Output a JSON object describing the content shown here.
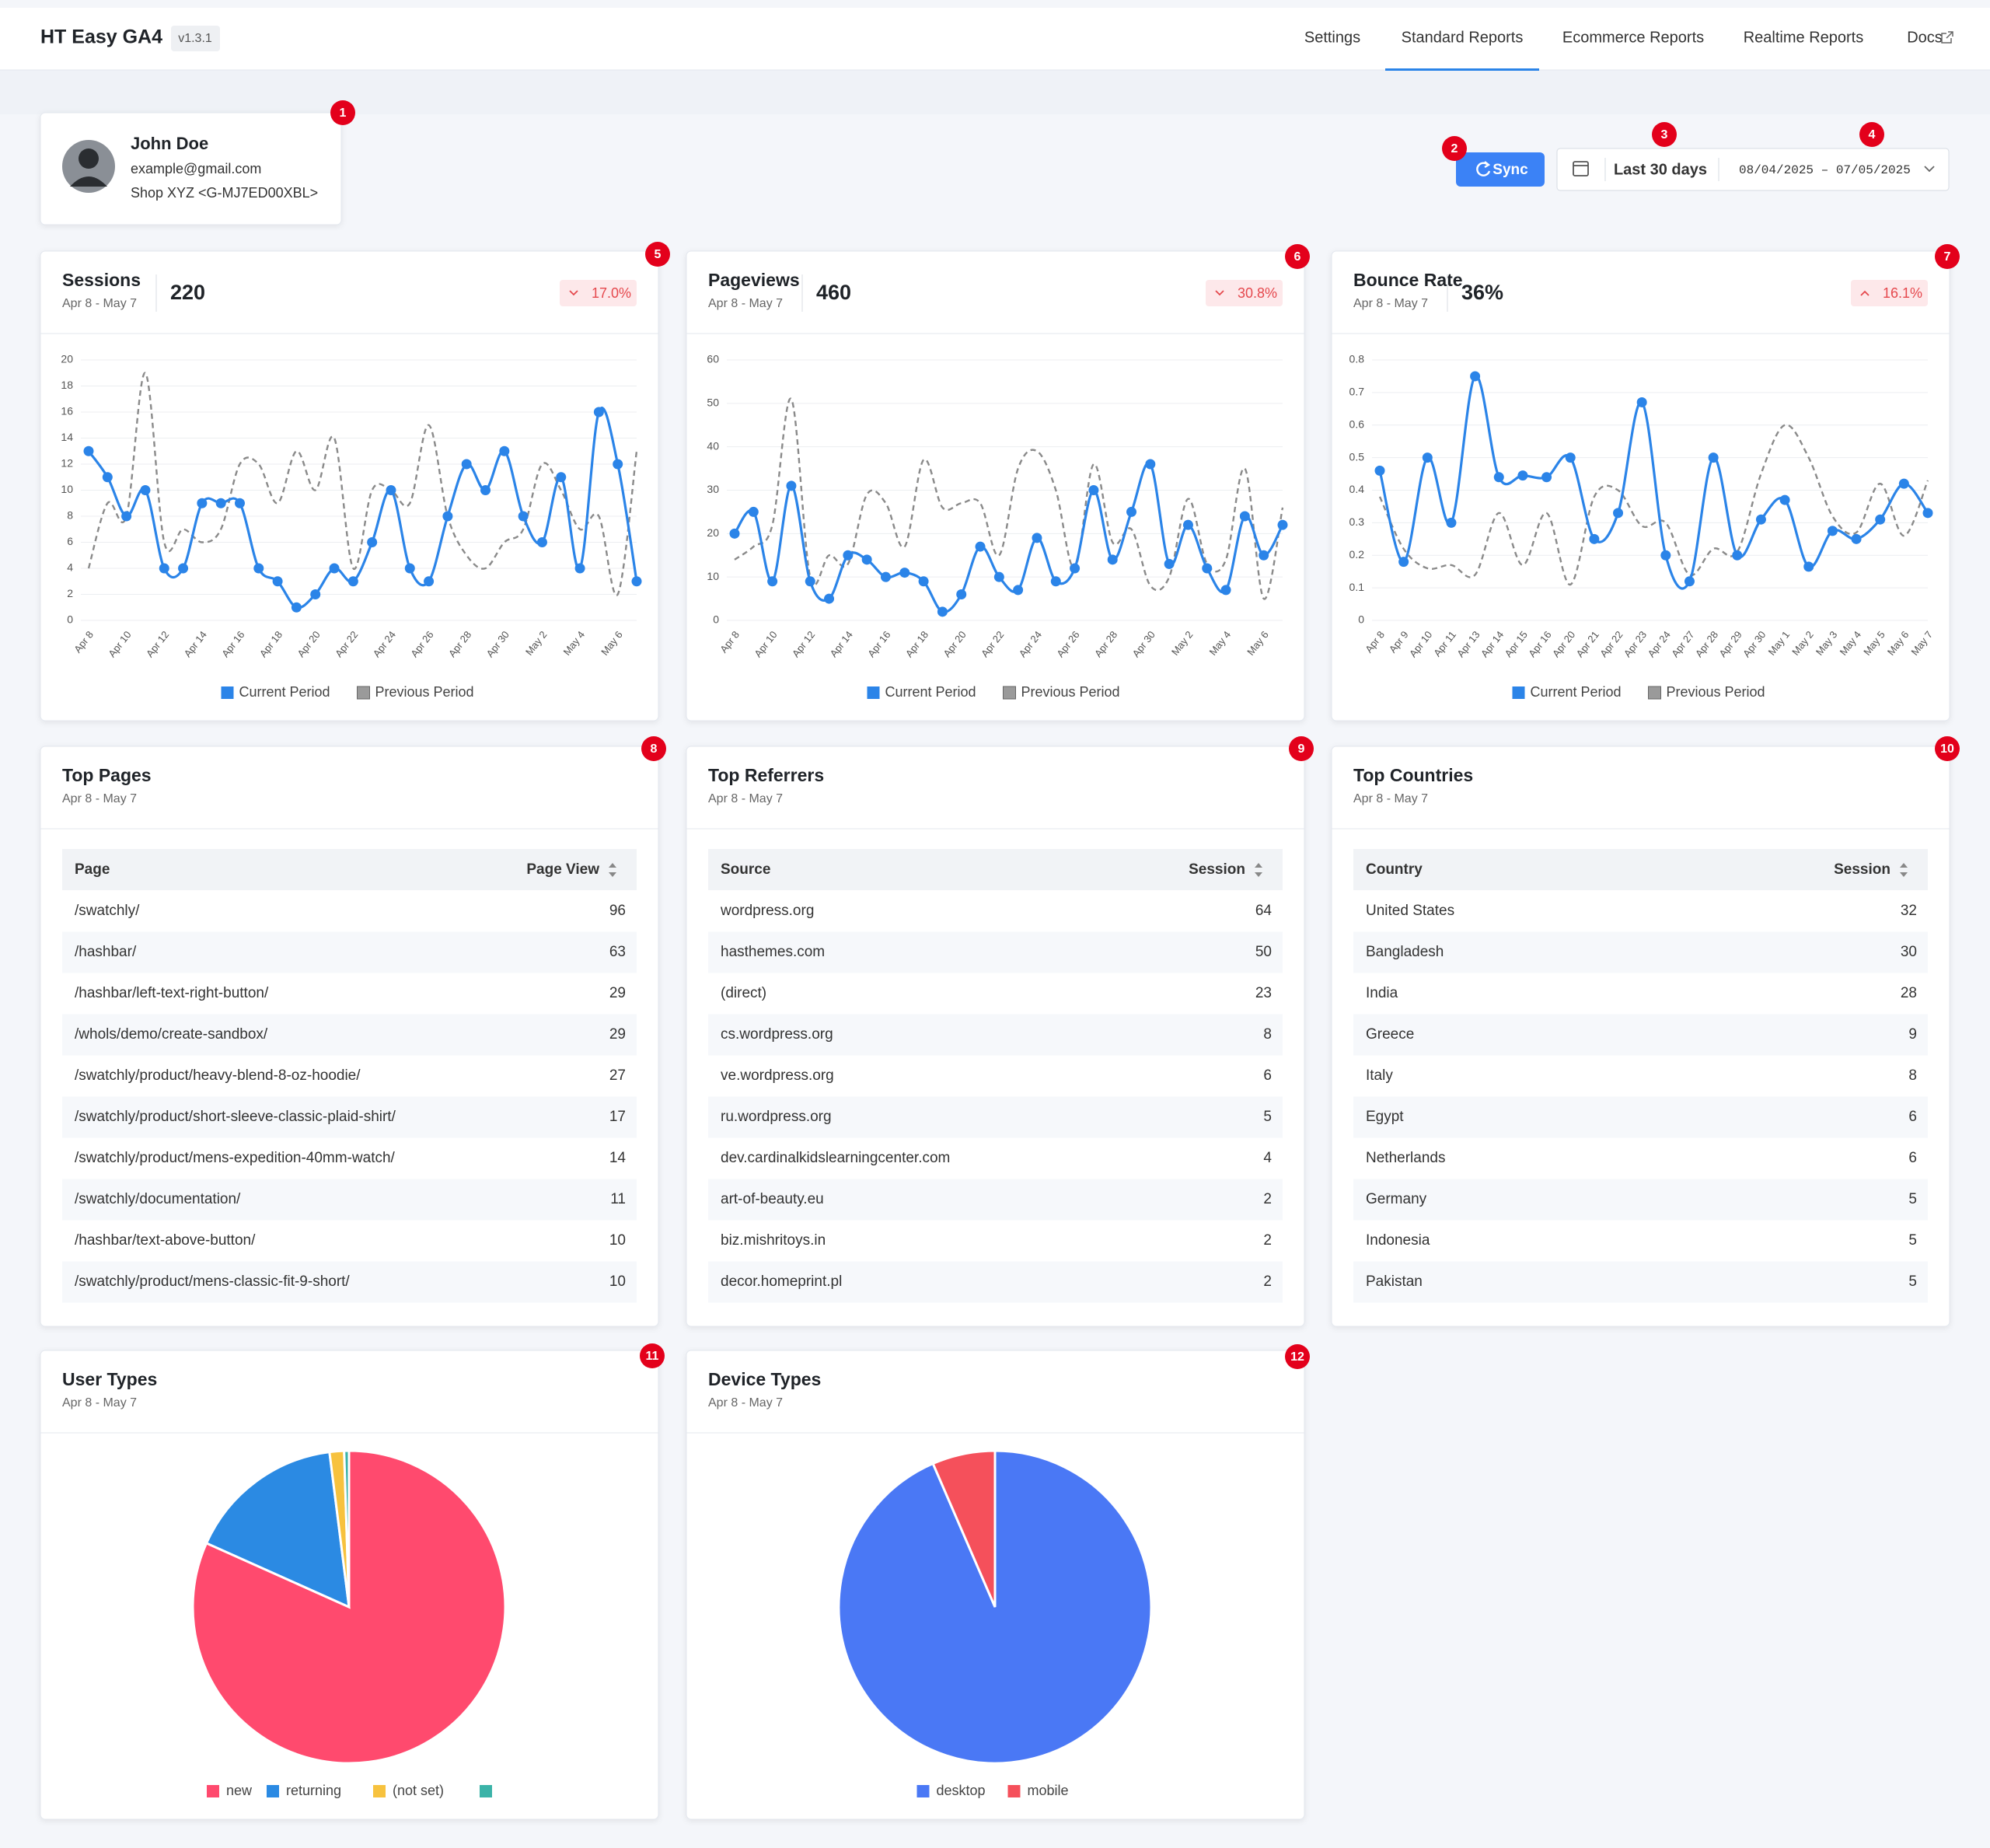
{
  "header": {
    "title": "HT Easy GA4",
    "version": "v1.3.1",
    "nav": [
      "Settings",
      "Standard Reports",
      "Ecommerce Reports",
      "Realtime Reports",
      "Docs"
    ],
    "active_nav": 1
  },
  "profile": {
    "name": "John Doe",
    "email": "example@gmail.com",
    "property": "Shop XYZ <G-MJ7ED00XBL>"
  },
  "controls": {
    "sync": "Sync",
    "range": "Last 30 days",
    "dates": "08/04/2025 – 07/05/2025"
  },
  "badges": [
    1,
    2,
    3,
    4,
    5,
    6,
    7,
    8,
    9,
    10,
    11,
    12
  ],
  "chart_data": [
    {
      "type": "line",
      "title": "Sessions",
      "subtitle": "Apr 8 - May 7",
      "total": "220",
      "change": "17.0%",
      "trend": "down",
      "categories": [
        "Apr 8",
        null,
        "Apr 10",
        null,
        "Apr 12",
        null,
        "Apr 14",
        null,
        "Apr 16",
        null,
        "Apr 18",
        null,
        "Apr 20",
        null,
        "Apr 22",
        null,
        "Apr 24",
        null,
        "Apr 26",
        null,
        "Apr 28",
        null,
        "Apr 30",
        null,
        "May 2",
        null,
        "May 4",
        null,
        "May 6",
        null
      ],
      "series": [
        {
          "name": "Current Period",
          "color": "#2b84e8",
          "values": [
            13,
            11,
            8,
            10,
            4,
            4,
            9,
            9,
            9,
            4,
            3,
            1,
            2,
            4,
            3,
            6,
            10,
            4,
            3,
            8,
            12,
            10,
            13,
            8,
            6,
            11,
            4,
            16,
            12,
            3
          ]
        },
        {
          "name": "Previous Period",
          "color": "#8a8a8a",
          "dashed": true,
          "values": [
            4,
            9,
            8,
            19,
            6,
            7,
            6,
            7,
            12,
            12,
            9,
            13,
            10,
            14,
            4,
            10,
            10,
            9,
            15,
            8,
            5,
            4,
            6,
            7,
            12,
            10,
            7,
            8,
            2,
            13
          ]
        }
      ],
      "ylim": [
        0,
        20
      ],
      "yticks": [
        0,
        2,
        4,
        6,
        8,
        10,
        12,
        14,
        16,
        18,
        20
      ],
      "grid": true
    },
    {
      "type": "line",
      "title": "Pageviews",
      "subtitle": "Apr 8 - May 7",
      "total": "460",
      "change": "30.8%",
      "trend": "down",
      "categories": [
        "Apr 8",
        null,
        "Apr 10",
        null,
        "Apr 12",
        null,
        "Apr 14",
        null,
        "Apr 16",
        null,
        "Apr 18",
        null,
        "Apr 20",
        null,
        "Apr 22",
        null,
        "Apr 24",
        null,
        "Apr 26",
        null,
        "Apr 28",
        null,
        "Apr 30",
        null,
        "May 2",
        null,
        "May 4",
        null,
        "May 6",
        null
      ],
      "series": [
        {
          "name": "Current Period",
          "color": "#2b84e8",
          "values": [
            20,
            25,
            9,
            31,
            9,
            5,
            15,
            14,
            10,
            11,
            9,
            2,
            6,
            17,
            10,
            7,
            19,
            9,
            12,
            30,
            14,
            25,
            36,
            13,
            22,
            12,
            7,
            24,
            15,
            22
          ]
        },
        {
          "name": "Previous Period",
          "color": "#8a8a8a",
          "dashed": true,
          "values": [
            14,
            17,
            22,
            51,
            10,
            15,
            13,
            29,
            27,
            17,
            37,
            26,
            27,
            27,
            15,
            35,
            39,
            30,
            12,
            36,
            18,
            21,
            8,
            10,
            28,
            13,
            14,
            35,
            5,
            26
          ]
        }
      ],
      "ylim": [
        0,
        60
      ],
      "yticks": [
        0,
        10,
        20,
        30,
        40,
        50,
        60
      ],
      "grid": true
    },
    {
      "type": "line",
      "title": "Bounce Rate",
      "subtitle": "Apr 8 - May 7",
      "total": "36%",
      "change": "16.1%",
      "trend": "up",
      "categories": [
        "Apr 8",
        "Apr 9",
        "Apr 10",
        "Apr 11",
        "Apr 13",
        "Apr 14",
        "Apr 15",
        "Apr 16",
        "Apr 20",
        "Apr 21",
        "Apr 22",
        "Apr 23",
        "Apr 24",
        "Apr 27",
        "Apr 28",
        "Apr 29",
        "Apr 30",
        "May 1",
        "May 2",
        "May 3",
        "May 4",
        "May 5",
        "May 6",
        "May 7"
      ],
      "series": [
        {
          "name": "Current Period",
          "color": "#2b84e8",
          "values": [
            0.46,
            0.18,
            0.5,
            0.3,
            0.75,
            0.44,
            0.445,
            0.44,
            0.5,
            0.25,
            0.33,
            0.67,
            0.2,
            0.12,
            0.5,
            0.2,
            0.31,
            0.37,
            0.165,
            0.275,
            0.25,
            0.31,
            0.42,
            0.33
          ]
        },
        {
          "name": "Previous Period",
          "color": "#8a8a8a",
          "dashed": true,
          "values": [
            0.38,
            0.22,
            0.16,
            0.17,
            0.14,
            0.33,
            0.17,
            0.33,
            0.11,
            0.38,
            0.4,
            0.29,
            0.3,
            0.14,
            0.22,
            0.21,
            0.45,
            0.6,
            0.5,
            0.32,
            0.27,
            0.42,
            0.26,
            0.43
          ]
        }
      ],
      "ylim": [
        0,
        0.8
      ],
      "yticks": [
        0,
        0.1,
        0.2,
        0.3,
        0.4,
        0.5,
        0.6,
        0.7,
        0.8
      ],
      "grid": true
    },
    {
      "type": "pie",
      "title": "User Types",
      "subtitle": "Apr 8 - May 7",
      "categories": [
        "new",
        "returning",
        "(not set)",
        null
      ],
      "values": [
        81.7,
        16.3,
        1.5,
        0.5
      ],
      "colors": [
        "#ff4a6e",
        "#2b8ae3",
        "#f7c23e",
        "#3bb3a8"
      ]
    },
    {
      "type": "pie",
      "title": "Device Types",
      "subtitle": "Apr 8 - May 7",
      "categories": [
        "desktop",
        "mobile"
      ],
      "values": [
        93.5,
        6.5
      ],
      "colors": [
        "#4a78f5",
        "#f5505b"
      ]
    }
  ],
  "tables": [
    {
      "title": "Top Pages",
      "subtitle": "Apr 8 - May 7",
      "columns": [
        "Page",
        "Page View"
      ],
      "rows": [
        [
          "/swatchly/",
          96
        ],
        [
          "/hashbar/",
          63
        ],
        [
          "/hashbar/left-text-right-button/",
          29
        ],
        [
          "/whols/demo/create-sandbox/",
          29
        ],
        [
          "/swatchly/product/heavy-blend-8-oz-hoodie/",
          27
        ],
        [
          "/swatchly/product/short-sleeve-classic-plaid-shirt/",
          17
        ],
        [
          "/swatchly/product/mens-expedition-40mm-watch/",
          14
        ],
        [
          "/swatchly/documentation/",
          11
        ],
        [
          "/hashbar/text-above-button/",
          10
        ],
        [
          "/swatchly/product/mens-classic-fit-9-short/",
          10
        ]
      ]
    },
    {
      "title": "Top Referrers",
      "subtitle": "Apr 8 - May 7",
      "columns": [
        "Source",
        "Session"
      ],
      "rows": [
        [
          "wordpress.org",
          64
        ],
        [
          "hasthemes.com",
          50
        ],
        [
          "(direct)",
          23
        ],
        [
          "cs.wordpress.org",
          8
        ],
        [
          "ve.wordpress.org",
          6
        ],
        [
          "ru.wordpress.org",
          5
        ],
        [
          "dev.cardinalkidslearningcenter.com",
          4
        ],
        [
          "art-of-beauty.eu",
          2
        ],
        [
          "biz.mishritoys.in",
          2
        ],
        [
          "decor.homeprint.pl",
          2
        ]
      ]
    },
    {
      "title": "Top Countries",
      "subtitle": "Apr 8 - May 7",
      "columns": [
        "Country",
        "Session"
      ],
      "rows": [
        [
          "United States",
          32
        ],
        [
          "Bangladesh",
          30
        ],
        [
          "India",
          28
        ],
        [
          "Greece",
          9
        ],
        [
          "Italy",
          8
        ],
        [
          "Egypt",
          6
        ],
        [
          "Netherlands",
          6
        ],
        [
          "Germany",
          5
        ],
        [
          "Indonesia",
          5
        ],
        [
          "Pakistan",
          5
        ]
      ]
    }
  ]
}
